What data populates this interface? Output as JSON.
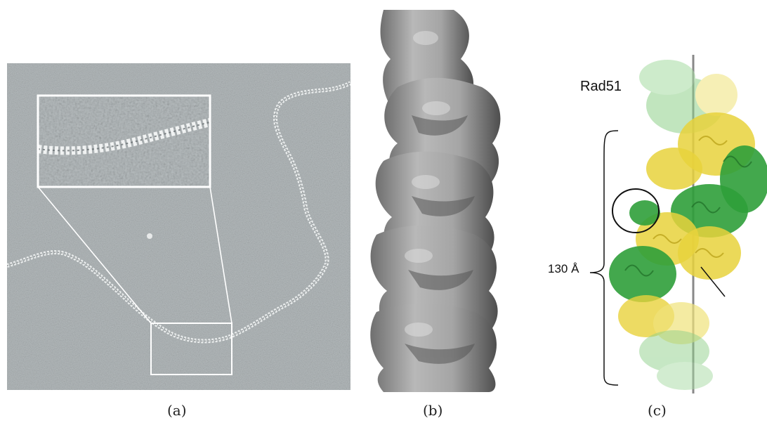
{
  "figure": {
    "panels": [
      {
        "id": "a",
        "caption": "(a)"
      },
      {
        "id": "b",
        "caption": "(b)"
      },
      {
        "id": "c",
        "caption": "(c)"
      }
    ],
    "panel_c": {
      "protein_label": "Rad51",
      "dimension_label": "130 Å"
    },
    "colors": {
      "em_background": "#9aa1a3",
      "surface_gray": "#9b9b9b",
      "rad51_green": "#2f9e3a",
      "rad51_light_green": "#8fd08a",
      "rad51_yellow": "#e8d23c"
    }
  }
}
